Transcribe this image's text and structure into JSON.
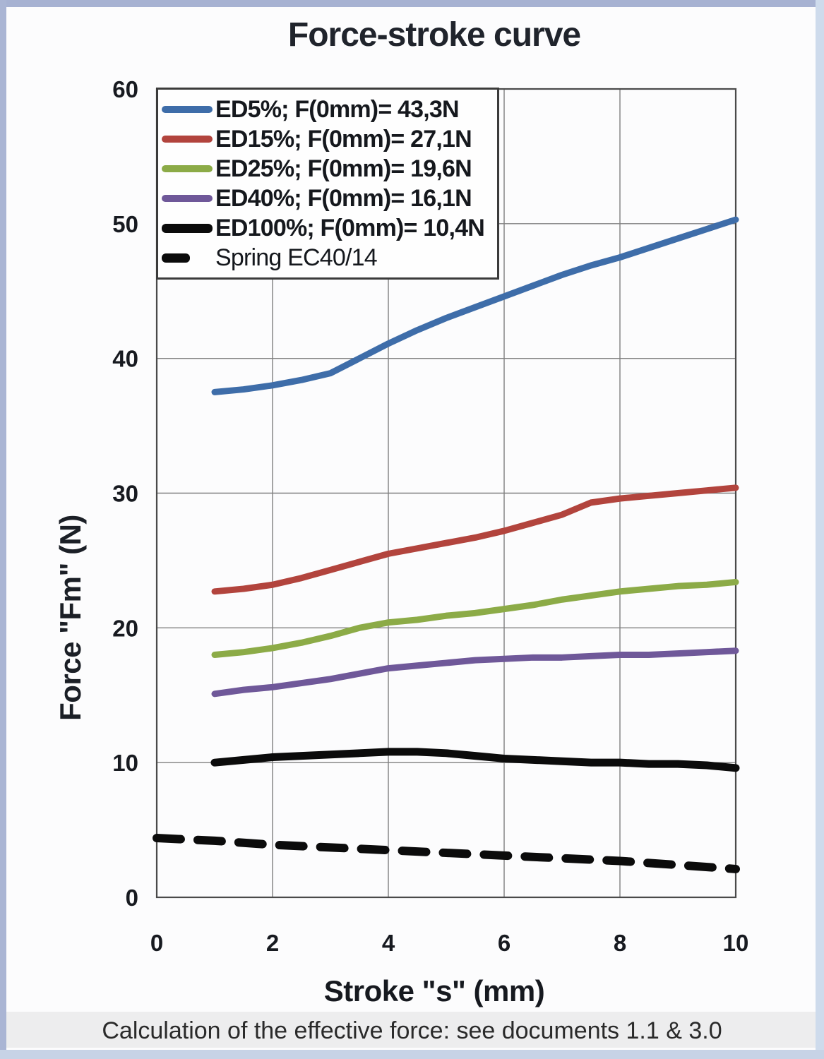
{
  "page": {
    "title": "Force-stroke curve",
    "caption": "Calculation of the effective force: see documents 1.1 & 3.0"
  },
  "chart_data": {
    "type": "line",
    "title": "Force-stroke curve",
    "xlabel": "Stroke \"s\" (mm)",
    "ylabel": "Force \"Fm\" (N)",
    "xlim": [
      0,
      10
    ],
    "ylim": [
      0,
      60
    ],
    "x_ticks": [
      0,
      2,
      4,
      6,
      8,
      10
    ],
    "y_ticks": [
      0,
      10,
      20,
      30,
      40,
      50,
      60
    ],
    "grid": true,
    "legend_position": "top-left-inside",
    "series": [
      {
        "name": "ED5%; F(0mm)= 43,3N",
        "color": "#3e6da9",
        "dash": false,
        "line_width": 9,
        "legend_weight": "bold",
        "x": [
          1,
          1.5,
          2,
          2.5,
          3,
          3.5,
          4,
          4.5,
          5,
          5.5,
          6,
          6.5,
          7,
          7.5,
          8,
          8.5,
          9,
          9.5,
          10
        ],
        "values": [
          37.5,
          37.7,
          38.0,
          38.4,
          38.9,
          40.0,
          41.1,
          42.1,
          43.0,
          43.8,
          44.6,
          45.4,
          46.2,
          46.9,
          47.5,
          48.2,
          48.9,
          49.6,
          50.3
        ]
      },
      {
        "name": "ED15%; F(0mm)= 27,1N",
        "color": "#b2443d",
        "dash": false,
        "line_width": 9,
        "legend_weight": "bold",
        "x": [
          1,
          1.5,
          2,
          2.5,
          3,
          3.5,
          4,
          4.5,
          5,
          5.5,
          6,
          6.5,
          7,
          7.5,
          8,
          8.5,
          9,
          9.5,
          10
        ],
        "values": [
          22.7,
          22.9,
          23.2,
          23.7,
          24.3,
          24.9,
          25.5,
          25.9,
          26.3,
          26.7,
          27.2,
          27.8,
          28.4,
          29.3,
          29.6,
          29.8,
          30.0,
          30.2,
          30.4
        ]
      },
      {
        "name": "ED25%; F(0mm)= 19,6N",
        "color": "#8cab47",
        "dash": false,
        "line_width": 9,
        "legend_weight": "bold",
        "x": [
          1,
          1.5,
          2,
          2.5,
          3,
          3.5,
          4,
          4.5,
          5,
          5.5,
          6,
          6.5,
          7,
          7.5,
          8,
          8.5,
          9,
          9.5,
          10
        ],
        "values": [
          18.0,
          18.2,
          18.5,
          18.9,
          19.4,
          20.0,
          20.4,
          20.6,
          20.9,
          21.1,
          21.4,
          21.7,
          22.1,
          22.4,
          22.7,
          22.9,
          23.1,
          23.2,
          23.4
        ]
      },
      {
        "name": "ED40%; F(0mm)= 16,1N",
        "color": "#6f5899",
        "dash": false,
        "line_width": 9,
        "legend_weight": "bold",
        "x": [
          1,
          1.5,
          2,
          2.5,
          3,
          3.5,
          4,
          4.5,
          5,
          5.5,
          6,
          6.5,
          7,
          7.5,
          8,
          8.5,
          9,
          9.5,
          10
        ],
        "values": [
          15.1,
          15.4,
          15.6,
          15.9,
          16.2,
          16.6,
          17.0,
          17.2,
          17.4,
          17.6,
          17.7,
          17.8,
          17.8,
          17.9,
          18.0,
          18.0,
          18.1,
          18.2,
          18.3
        ]
      },
      {
        "name": "ED100%; F(0mm)= 10,4N",
        "color": "#0b0b0b",
        "dash": false,
        "line_width": 11,
        "legend_weight": "bold",
        "x": [
          1,
          1.5,
          2,
          2.5,
          3,
          3.5,
          4,
          4.5,
          5,
          5.5,
          6,
          6.5,
          7,
          7.5,
          8,
          8.5,
          9,
          9.5,
          10
        ],
        "values": [
          10.0,
          10.2,
          10.4,
          10.5,
          10.6,
          10.7,
          10.8,
          10.8,
          10.7,
          10.5,
          10.3,
          10.2,
          10.1,
          10.0,
          10.0,
          9.9,
          9.9,
          9.8,
          9.6
        ]
      },
      {
        "name": "Spring EC40/14",
        "color": "#0b0b0b",
        "dash": true,
        "line_width": 12,
        "legend_weight": "normal",
        "x": [
          0,
          1,
          2,
          3,
          4,
          5,
          6,
          7,
          8,
          9,
          10
        ],
        "values": [
          4.4,
          4.2,
          3.9,
          3.7,
          3.5,
          3.3,
          3.1,
          2.9,
          2.7,
          2.4,
          2.1
        ]
      }
    ],
    "colors": {
      "gridline": "#7f7f7f",
      "plot_border": "#4a4a4a",
      "page_border_top": "#a7b2d2",
      "page_border_bottom": "#c7d3e6"
    }
  }
}
